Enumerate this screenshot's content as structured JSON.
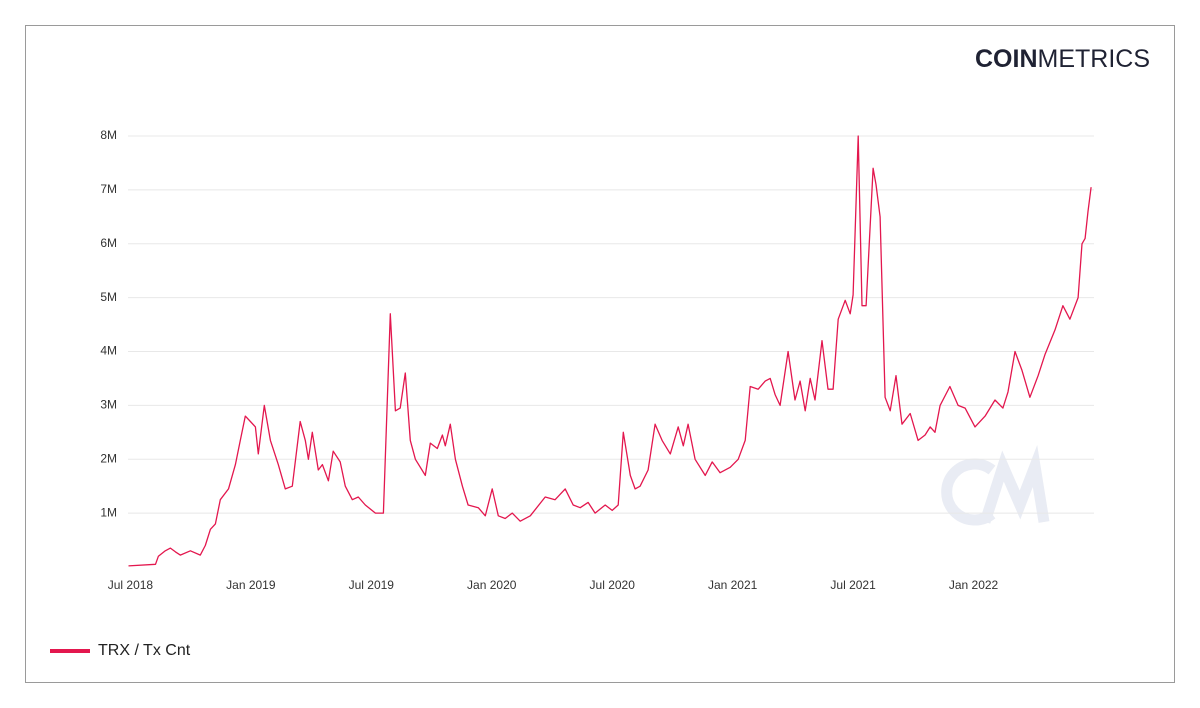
{
  "logo": {
    "bold": "COIN",
    "light": "METRICS"
  },
  "chart_data": {
    "type": "line",
    "x": [
      2018.492,
      2018.604,
      2018.616,
      2018.645,
      2018.666,
      2018.687,
      2018.707,
      2018.749,
      2018.79,
      2018.811,
      2018.832,
      2018.853,
      2018.873,
      2018.907,
      2018.936,
      2018.956,
      2018.977,
      2018.998,
      2019.019,
      2019.031,
      2019.056,
      2019.081,
      2019.114,
      2019.143,
      2019.172,
      2019.205,
      2019.226,
      2019.239,
      2019.255,
      2019.28,
      2019.297,
      2019.322,
      2019.342,
      2019.371,
      2019.392,
      2019.421,
      2019.446,
      2019.475,
      2019.517,
      2019.55,
      2019.579,
      2019.6,
      2019.62,
      2019.641,
      2019.662,
      2019.683,
      2019.724,
      2019.745,
      2019.774,
      2019.795,
      2019.807,
      2019.828,
      2019.849,
      2019.878,
      2019.902,
      2019.944,
      2019.973,
      2020.002,
      2020.027,
      2020.056,
      2020.085,
      2020.118,
      2020.16,
      2020.222,
      2020.263,
      2020.305,
      2020.338,
      2020.367,
      2020.4,
      2020.429,
      2020.471,
      2020.5,
      2020.525,
      2020.546,
      2020.575,
      2020.595,
      2020.616,
      2020.649,
      2020.678,
      2020.707,
      2020.741,
      2020.774,
      2020.795,
      2020.815,
      2020.844,
      2020.886,
      2020.915,
      2020.948,
      2020.99,
      2021.023,
      2021.052,
      2021.073,
      2021.106,
      2021.135,
      2021.156,
      2021.176,
      2021.197,
      2021.23,
      2021.259,
      2021.28,
      2021.301,
      2021.322,
      2021.342,
      2021.371,
      2021.396,
      2021.417,
      2021.438,
      2021.467,
      2021.488,
      2021.5,
      2021.521,
      2021.537,
      2021.554,
      2021.583,
      2021.595,
      2021.612,
      2021.633,
      2021.654,
      2021.678,
      2021.703,
      2021.737,
      2021.77,
      2021.799,
      2021.82,
      2021.84,
      2021.861,
      2021.902,
      2021.936,
      2021.965,
      2022.006,
      2022.048,
      2022.089,
      2022.122,
      2022.143,
      2022.172,
      2022.201,
      2022.234,
      2022.268,
      2022.297,
      2022.338,
      2022.371,
      2022.4,
      2022.434,
      2022.45,
      2022.463,
      2022.475,
      2022.488
    ],
    "series": [
      {
        "name": "TRX / Tx Cnt",
        "color": "#e3174e",
        "values": [
          20000,
          50000,
          200000,
          300000,
          350000,
          280000,
          220000,
          300000,
          220000,
          400000,
          700000,
          800000,
          1250000,
          1450000,
          1900000,
          2350000,
          2800000,
          2700000,
          2600000,
          2100000,
          3000000,
          2350000,
          1900000,
          1450000,
          1500000,
          2700000,
          2350000,
          2000000,
          2500000,
          1800000,
          1900000,
          1600000,
          2150000,
          1950000,
          1500000,
          1250000,
          1300000,
          1150000,
          1000000,
          1000000,
          4700000,
          2900000,
          2950000,
          3600000,
          2350000,
          2000000,
          1700000,
          2300000,
          2200000,
          2450000,
          2250000,
          2650000,
          2000000,
          1500000,
          1150000,
          1100000,
          950000,
          1450000,
          950000,
          900000,
          1000000,
          850000,
          950000,
          1300000,
          1250000,
          1450000,
          1150000,
          1100000,
          1200000,
          1000000,
          1150000,
          1050000,
          1150000,
          2500000,
          1700000,
          1450000,
          1500000,
          1800000,
          2650000,
          2350000,
          2100000,
          2600000,
          2250000,
          2650000,
          2000000,
          1700000,
          1950000,
          1750000,
          1850000,
          2000000,
          2350000,
          3350000,
          3300000,
          3450000,
          3500000,
          3200000,
          3000000,
          4000000,
          3100000,
          3450000,
          2900000,
          3500000,
          3100000,
          4200000,
          3300000,
          3300000,
          4600000,
          4950000,
          4700000,
          5050000,
          8000000,
          4850000,
          4850000,
          7400000,
          7100000,
          6500000,
          3150000,
          2900000,
          3550000,
          2650000,
          2850000,
          2350000,
          2450000,
          2600000,
          2500000,
          3000000,
          3350000,
          3000000,
          2950000,
          2600000,
          2800000,
          3100000,
          2950000,
          3250000,
          4000000,
          3650000,
          3150000,
          3550000,
          3950000,
          4400000,
          4850000,
          4600000,
          5000000,
          6000000,
          6100000,
          6600000,
          7050000
        ]
      }
    ],
    "xlim": [
      2018.49,
      2022.5
    ],
    "xticks": [
      {
        "value": 2018.5,
        "label": "Jul 2018"
      },
      {
        "value": 2019,
        "label": "Jan 2019"
      },
      {
        "value": 2019.5,
        "label": "Jul 2019"
      },
      {
        "value": 2020,
        "label": "Jan 2020"
      },
      {
        "value": 2020.5,
        "label": "Jul 2020"
      },
      {
        "value": 2021,
        "label": "Jan 2021"
      },
      {
        "value": 2021.5,
        "label": "Jul 2021"
      },
      {
        "value": 2022,
        "label": "Jan 2022"
      }
    ],
    "ylim": [
      0,
      8000000
    ],
    "yticks": [
      {
        "value": 1000000,
        "label": "1M"
      },
      {
        "value": 2000000,
        "label": "2M"
      },
      {
        "value": 3000000,
        "label": "3M"
      },
      {
        "value": 4000000,
        "label": "4M"
      },
      {
        "value": 5000000,
        "label": "5M"
      },
      {
        "value": 6000000,
        "label": "6M"
      },
      {
        "value": 7000000,
        "label": "7M"
      },
      {
        "value": 8000000,
        "label": "8M"
      }
    ],
    "grid": true,
    "legend": "bottom-left"
  }
}
